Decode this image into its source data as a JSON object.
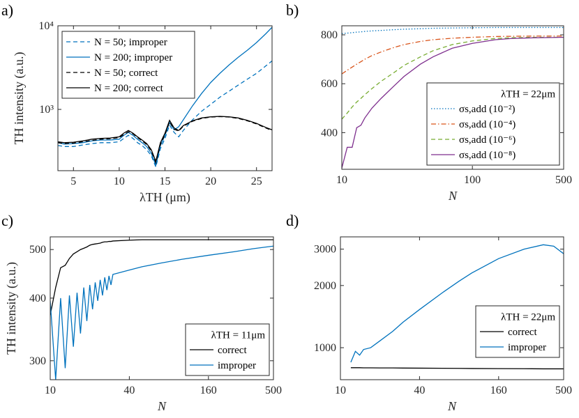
{
  "chart_data": [
    {
      "type": "line",
      "label": "a)",
      "ylabel": "TH intensity (a.u.)",
      "xlabel": "λTH (μm)",
      "xscale": "linear",
      "yscale": "log",
      "xlim": [
        3.3,
        26.7
      ],
      "xticks": [
        5,
        10,
        15,
        20,
        25
      ],
      "ylim": [
        185,
        10000
      ],
      "yticks": [
        {
          "value": 1000,
          "label": "10³"
        },
        {
          "value": 10000,
          "label": "10⁴"
        }
      ],
      "legend": "upper left",
      "x": [
        3.3,
        4,
        5,
        6,
        7,
        8,
        9,
        10,
        10.5,
        11,
        11.5,
        12,
        12.5,
        13,
        13.5,
        14,
        14.5,
        15,
        15.5,
        16,
        16.5,
        17,
        18,
        19,
        20,
        21,
        22,
        23,
        24,
        25,
        26,
        26.7
      ],
      "series": [
        {
          "name": "N = 50; improper",
          "color": "#0072bd",
          "linestyle": "dashed",
          "values": [
            370,
            360,
            360,
            375,
            390,
            400,
            400,
            410,
            450,
            490,
            450,
            400,
            370,
            330,
            280,
            205,
            340,
            450,
            650,
            530,
            470,
            560,
            750,
            950,
            1150,
            1400,
            1650,
            1950,
            2300,
            2700,
            3300,
            3800
          ]
        },
        {
          "name": "N = 200; improper",
          "color": "#0072bd",
          "linestyle": "solid",
          "values": [
            400,
            385,
            390,
            400,
            420,
            430,
            430,
            440,
            490,
            530,
            490,
            440,
            400,
            360,
            300,
            215,
            370,
            490,
            700,
            570,
            620,
            750,
            1100,
            1550,
            2100,
            2700,
            3400,
            4200,
            5100,
            6300,
            8000,
            9600
          ]
        },
        {
          "name": "N = 50; correct",
          "color": "#000000",
          "linestyle": "dashed",
          "values": [
            400,
            390,
            395,
            410,
            425,
            440,
            445,
            460,
            500,
            540,
            510,
            460,
            420,
            380,
            320,
            230,
            380,
            500,
            710,
            580,
            550,
            630,
            720,
            780,
            810,
            820,
            810,
            780,
            730,
            670,
            600,
            560
          ]
        },
        {
          "name": "N = 200; correct",
          "color": "#000000",
          "linestyle": "solid",
          "values": [
            410,
            400,
            405,
            420,
            440,
            450,
            455,
            470,
            520,
            560,
            520,
            470,
            430,
            390,
            330,
            240,
            400,
            520,
            740,
            600,
            560,
            640,
            730,
            790,
            815,
            825,
            815,
            790,
            740,
            680,
            610,
            570
          ]
        }
      ]
    },
    {
      "type": "line",
      "label": "b)",
      "xlabel": "N",
      "xscale": "log",
      "yscale": "linear",
      "xlim": [
        10,
        500
      ],
      "xticks": [
        10,
        100,
        500
      ],
      "ylim": [
        250,
        837
      ],
      "yticks": [
        400,
        600,
        800
      ],
      "legend": "lower right",
      "legend_title": "λTH = 22μm",
      "x": [
        10,
        11,
        12,
        13,
        14,
        15,
        17,
        20,
        25,
        30,
        40,
        50,
        70,
        100,
        150,
        200,
        300,
        400,
        500
      ],
      "series": [
        {
          "name": "σs,add (10⁻²)",
          "color": "#0072bd",
          "linestyle": "dotted",
          "values": [
            805,
            807,
            809,
            811,
            812,
            814,
            816,
            818,
            821,
            823,
            825,
            827,
            828,
            829,
            830,
            830,
            830,
            830,
            830
          ]
        },
        {
          "name": "σs,add (10⁻⁴)",
          "color": "#d95319",
          "linestyle": "dashdot",
          "values": [
            640,
            655,
            668,
            680,
            690,
            700,
            715,
            730,
            748,
            760,
            773,
            780,
            786,
            790,
            793,
            794,
            795,
            795,
            795
          ]
        },
        {
          "name": "σs,add (10⁻⁶)",
          "color": "#77ac30",
          "linestyle": "dashed",
          "values": [
            455,
            480,
            505,
            525,
            540,
            555,
            580,
            610,
            645,
            675,
            710,
            735,
            760,
            775,
            785,
            788,
            790,
            790,
            790
          ]
        },
        {
          "name": "σs,add (10⁻⁸)",
          "color": "#7e2f8e",
          "linestyle": "solid",
          "values": [
            255,
            340,
            340,
            420,
            430,
            460,
            500,
            540,
            590,
            630,
            680,
            710,
            745,
            765,
            780,
            785,
            788,
            789,
            790
          ]
        }
      ]
    },
    {
      "type": "line",
      "label": "c)",
      "ylabel": "TH intensity (a.u.)",
      "xlabel": "N",
      "xscale": "log",
      "yscale": "log",
      "xlim": [
        10,
        500
      ],
      "xticks": [
        10,
        40,
        160,
        500
      ],
      "ylim": [
        275,
        530
      ],
      "yticks": [
        300,
        400,
        500
      ],
      "legend": "lower right",
      "legend_title": "λTH = 11μm",
      "x": [
        10,
        11,
        12,
        13,
        14,
        15,
        16,
        17,
        18,
        19,
        20,
        21,
        22,
        23,
        24,
        25,
        26,
        27,
        28,
        29,
        30,
        40,
        50,
        70,
        100,
        160,
        250,
        350,
        500
      ],
      "series": [
        {
          "name": "correct",
          "color": "#000000",
          "linestyle": "solid",
          "values": [
            370,
            420,
            460,
            465,
            480,
            490,
            495,
            500,
            503,
            506,
            510,
            512,
            513,
            514,
            515,
            517,
            518,
            518,
            519,
            519,
            520,
            522,
            523,
            523,
            523,
            523,
            523,
            523,
            523
          ]
        },
        {
          "name": "improper",
          "color": "#0072bd",
          "linestyle": "solid",
          "values": [
            395,
            275,
            400,
            290,
            405,
            320,
            410,
            340,
            420,
            360,
            425,
            380,
            430,
            395,
            435,
            405,
            440,
            415,
            443,
            425,
            446,
            455,
            462,
            470,
            478,
            487,
            495,
            502,
            508
          ]
        }
      ]
    },
    {
      "type": "line",
      "label": "d)",
      "xlabel": "N",
      "xscale": "log",
      "yscale": "log",
      "xlim": [
        10,
        500
      ],
      "xticks": [
        10,
        40,
        160,
        500
      ],
      "ylim": [
        700,
        3440
      ],
      "yticks": [
        1000,
        2000,
        3000
      ],
      "legend": "lower right",
      "legend_title": "λTH = 22μm",
      "x": [
        12,
        13,
        14,
        15,
        17,
        20,
        25,
        30,
        40,
        60,
        80,
        100,
        160,
        250,
        350,
        420,
        500
      ],
      "series": [
        {
          "name": "correct",
          "color": "#000000",
          "linestyle": "solid",
          "values": [
            800,
            800,
            800,
            799,
            799,
            798,
            798,
            797,
            796,
            795,
            794,
            793,
            792,
            791,
            790,
            790,
            790
          ]
        },
        {
          "name": "improper",
          "color": "#0072bd",
          "linestyle": "solid",
          "values": [
            850,
            960,
            920,
            980,
            1000,
            1080,
            1200,
            1330,
            1530,
            1850,
            2100,
            2300,
            2700,
            3000,
            3150,
            3100,
            2850
          ]
        }
      ]
    }
  ]
}
